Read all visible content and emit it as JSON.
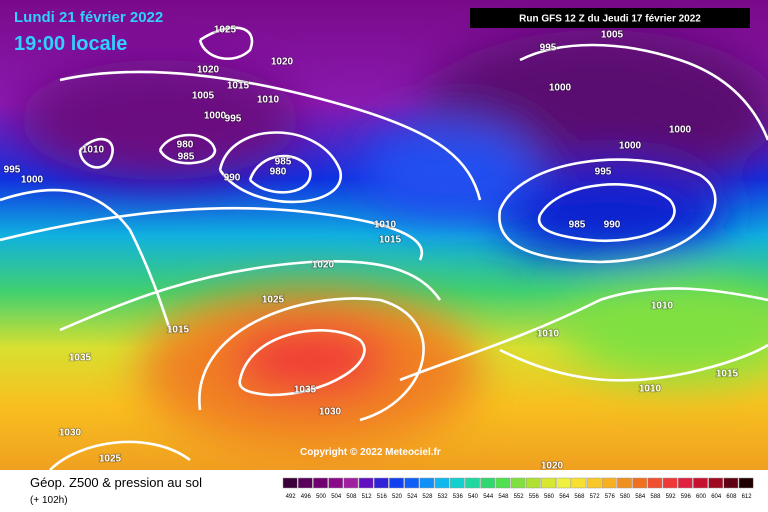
{
  "header": {
    "date": "Lundi 21 février 2022",
    "time": "19:00 locale",
    "run": "Run GFS 12 Z du Jeudi 17 février 2022"
  },
  "copyright": "Copyright © 2022 Meteociel.fr",
  "footer": {
    "title": "Géop. Z500 & pression au sol",
    "subtitle": "(+ 102h)"
  },
  "legend": {
    "values": [
      492,
      496,
      500,
      504,
      508,
      512,
      516,
      520,
      524,
      528,
      532,
      536,
      540,
      544,
      548,
      552,
      556,
      560,
      564,
      568,
      572,
      576,
      580,
      584,
      588,
      592,
      596,
      600,
      604,
      608,
      612
    ],
    "colors": [
      "#3a003a",
      "#5a005a",
      "#700070",
      "#8a0a8a",
      "#a020a0",
      "#6010c0",
      "#3020d8",
      "#1040f0",
      "#1060f8",
      "#1090f8",
      "#10b8f0",
      "#10d0d0",
      "#20d8a0",
      "#30d870",
      "#50e050",
      "#80e040",
      "#b0e030",
      "#d8e830",
      "#f0f040",
      "#f8e030",
      "#f8c828",
      "#f8b020",
      "#f09020",
      "#f07020",
      "#f05030",
      "#f03838",
      "#e02040",
      "#c81030",
      "#a00a20",
      "#600010",
      "#200000"
    ]
  },
  "isobar_labels": [
    "1025",
    "1020",
    "1020",
    "1015",
    "1005",
    "1010",
    "1000",
    "995",
    "1010",
    "980",
    "985",
    "995",
    "1000",
    "990",
    "985",
    "980",
    "1010",
    "1015",
    "1020",
    "1025",
    "1015",
    "1035",
    "1035",
    "1030",
    "1030",
    "1025",
    "1020",
    "995",
    "1005",
    "1000",
    "1000",
    "1000",
    "995",
    "985",
    "990",
    "1010",
    "1010",
    "1010",
    "1015"
  ]
}
